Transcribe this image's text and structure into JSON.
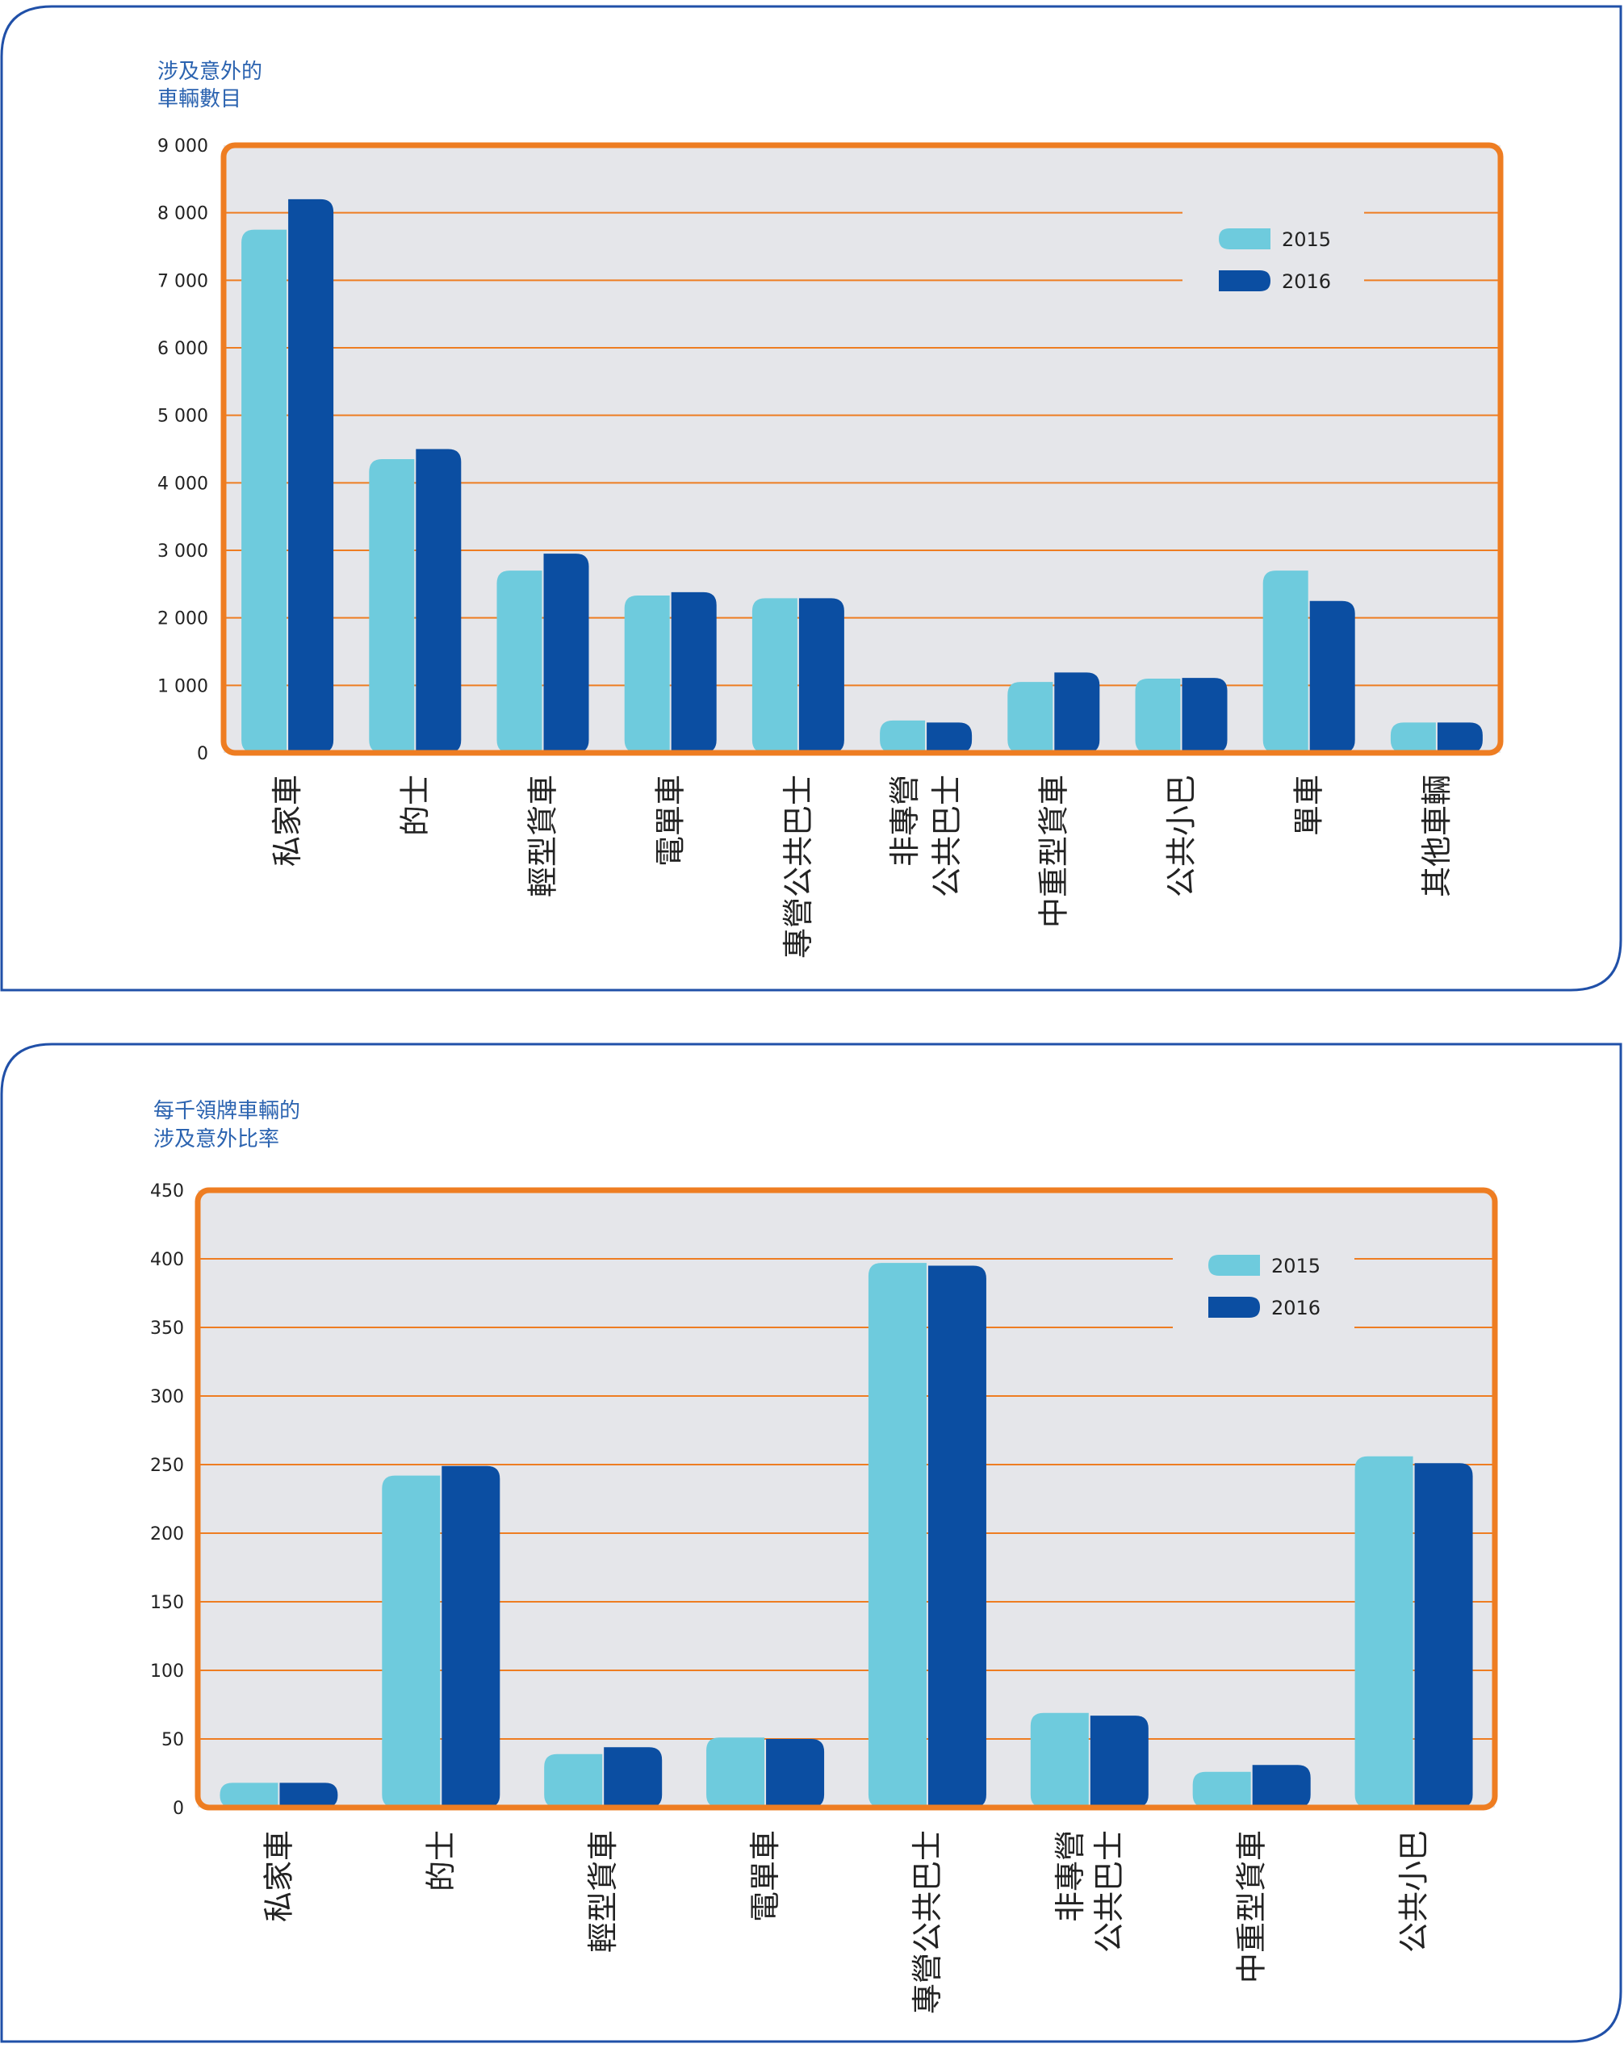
{
  "colors": {
    "panel_border": "#2050a8",
    "plot_background": "#e5e6ea",
    "frame_and_grid": "#ee7d22",
    "series_2015": "#6ecbdd",
    "series_2016": "#0b4ea2",
    "ylabel": "#2b63b0"
  },
  "chart_data": [
    {
      "type": "bar",
      "title": "",
      "ylabel_lines": [
        "涉及意外的",
        "車輛數目"
      ],
      "categories": [
        "私家車",
        "的士",
        "輕型貨車",
        "電單車",
        "專營公共巴士",
        "非專營公共巴士",
        "中重型貨車",
        "公共小巴",
        "單車",
        "其他車輛"
      ],
      "category_lines": [
        [
          "私家車"
        ],
        [
          "的士"
        ],
        [
          "輕型貨車"
        ],
        [
          "電單車"
        ],
        [
          "專營公共巴士"
        ],
        [
          "非專營",
          "公共巴士"
        ],
        [
          "中重型貨車"
        ],
        [
          "公共小巴"
        ],
        [
          "單車"
        ],
        [
          "其他車輛"
        ]
      ],
      "ylim": [
        0,
        9000
      ],
      "yticks": [
        0,
        1000,
        2000,
        3000,
        4000,
        5000,
        6000,
        7000,
        8000,
        9000
      ],
      "ytick_labels": [
        "0",
        "1 000",
        "2 000",
        "3 000",
        "4 000",
        "5 000",
        "6 000",
        "7 000",
        "8 000",
        "9 000"
      ],
      "grid": true,
      "legend_position": "top-right",
      "series": [
        {
          "name": "2015",
          "color": "#6ecbdd",
          "values": [
            7750,
            4350,
            2700,
            2330,
            2290,
            480,
            1050,
            1100,
            2700,
            450
          ]
        },
        {
          "name": "2016",
          "color": "#0b4ea2",
          "values": [
            8200,
            4500,
            2950,
            2380,
            2290,
            450,
            1190,
            1110,
            2250,
            450
          ]
        }
      ]
    },
    {
      "type": "bar",
      "title": "",
      "ylabel_lines": [
        "每千領牌車輛的",
        "涉及意外比率"
      ],
      "categories": [
        "私家車",
        "的士",
        "輕型貨車",
        "電單車",
        "專營公共巴士",
        "非專營公共巴士",
        "中重型貨車",
        "公共小巴"
      ],
      "category_lines": [
        [
          "私家車"
        ],
        [
          "的士"
        ],
        [
          "輕型貨車"
        ],
        [
          "電單車"
        ],
        [
          "專營公共巴士"
        ],
        [
          "非專營",
          "公共巴士"
        ],
        [
          "中重型貨車"
        ],
        [
          "公共小巴"
        ]
      ],
      "ylim": [
        0,
        450
      ],
      "yticks": [
        0,
        50,
        100,
        150,
        200,
        250,
        300,
        350,
        400,
        450
      ],
      "ytick_labels": [
        "0",
        "50",
        "100",
        "150",
        "200",
        "250",
        "300",
        "350",
        "400",
        "450"
      ],
      "grid": true,
      "legend_position": "top-right",
      "series": [
        {
          "name": "2015",
          "color": "#6ecbdd",
          "values": [
            18,
            242,
            39,
            51,
            397,
            69,
            26,
            256
          ]
        },
        {
          "name": "2016",
          "color": "#0b4ea2",
          "values": [
            18,
            249,
            44,
            50,
            395,
            67,
            31,
            251
          ]
        }
      ]
    }
  ]
}
